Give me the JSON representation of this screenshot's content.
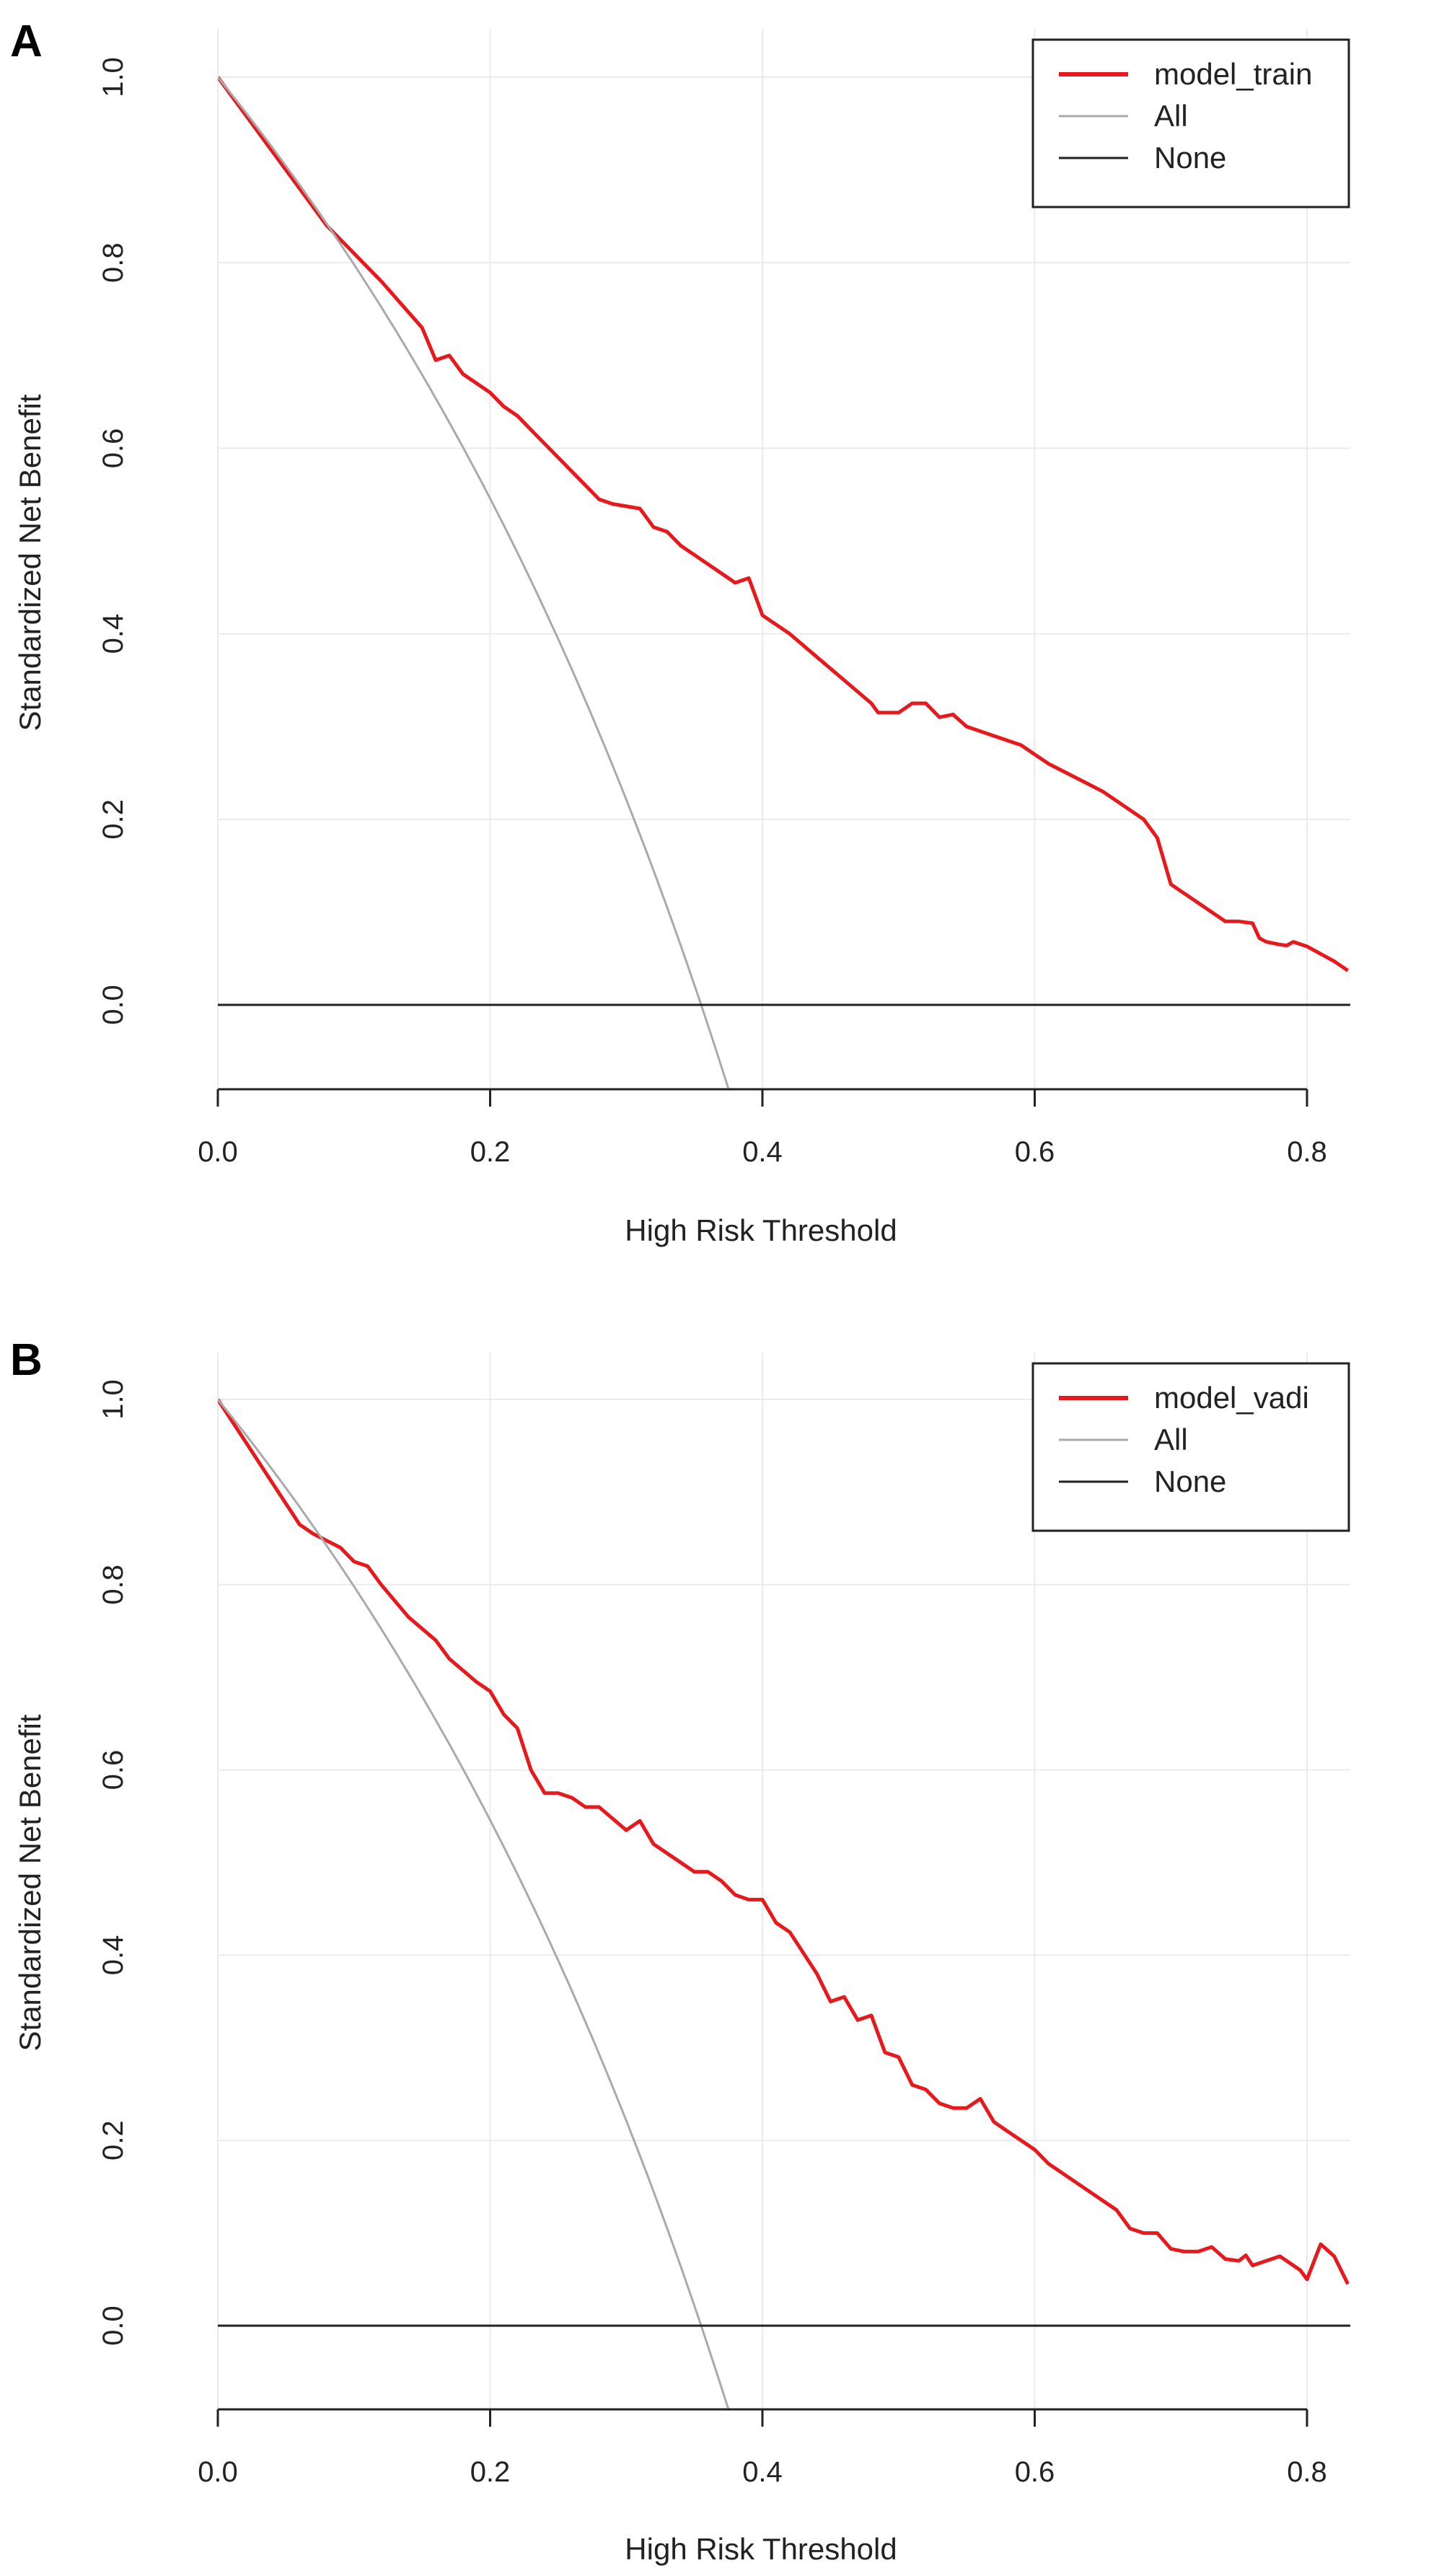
{
  "chart_data": [
    {
      "panel_label": "A",
      "type": "line",
      "title": "",
      "xlabel": "High Risk Threshold",
      "ylabel": "Standardized Net Benefit",
      "xlim": [
        0,
        0.83
      ],
      "ylim": [
        -0.09,
        1.0
      ],
      "grid": true,
      "legend_position": "top-right",
      "x_ticks": [
        {
          "v": 0,
          "label": "0.0"
        },
        {
          "v": 0.2,
          "label": "0.2"
        },
        {
          "v": 0.4,
          "label": "0.4"
        },
        {
          "v": 0.6,
          "label": "0.6"
        },
        {
          "v": 0.8,
          "label": "0.8"
        }
      ],
      "y_ticks": [
        {
          "v": 0,
          "label": "0.0"
        },
        {
          "v": 0.2,
          "label": "0.2"
        },
        {
          "v": 0.4,
          "label": "0.4"
        },
        {
          "v": 0.6,
          "label": "0.6"
        },
        {
          "v": 0.8,
          "label": "0.8"
        },
        {
          "v": 1.0,
          "label": "1.0"
        }
      ],
      "prevalence": 0.355,
      "series": [
        {
          "name": "model_train",
          "color": "#e8191d",
          "role": "model",
          "x": [
            0,
            0.02,
            0.04,
            0.06,
            0.07,
            0.08,
            0.1,
            0.12,
            0.15,
            0.16,
            0.17,
            0.18,
            0.2,
            0.21,
            0.22,
            0.23,
            0.25,
            0.27,
            0.28,
            0.29,
            0.31,
            0.32,
            0.33,
            0.34,
            0.36,
            0.38,
            0.39,
            0.4,
            0.42,
            0.44,
            0.46,
            0.48,
            0.485,
            0.5,
            0.51,
            0.52,
            0.53,
            0.54,
            0.55,
            0.57,
            0.59,
            0.6,
            0.61,
            0.63,
            0.65,
            0.67,
            0.68,
            0.69,
            0.7,
            0.71,
            0.72,
            0.73,
            0.74,
            0.75,
            0.76,
            0.765,
            0.77,
            0.78,
            0.785,
            0.79,
            0.8,
            0.81,
            0.82,
            0.83
          ],
          "y": [
            1.0,
            0.96,
            0.92,
            0.88,
            0.86,
            0.84,
            0.81,
            0.78,
            0.73,
            0.695,
            0.7,
            0.68,
            0.66,
            0.645,
            0.635,
            0.62,
            0.59,
            0.56,
            0.545,
            0.54,
            0.535,
            0.515,
            0.51,
            0.495,
            0.475,
            0.455,
            0.46,
            0.42,
            0.4,
            0.375,
            0.35,
            0.325,
            0.315,
            0.315,
            0.325,
            0.325,
            0.31,
            0.313,
            0.3,
            0.29,
            0.28,
            0.27,
            0.26,
            0.245,
            0.23,
            0.21,
            0.2,
            0.18,
            0.13,
            0.12,
            0.11,
            0.1,
            0.09,
            0.09,
            0.088,
            0.072,
            0.068,
            0.065,
            0.064,
            0.068,
            0.063,
            0.055,
            0.047,
            0.037
          ]
        },
        {
          "name": "All",
          "color": "#aaaaaa",
          "role": "all"
        },
        {
          "name": "None",
          "color": "#222222",
          "role": "none"
        }
      ]
    },
    {
      "panel_label": "B",
      "type": "line",
      "title": "",
      "xlabel": "High Risk Threshold",
      "ylabel": "Standardized Net Benefit",
      "xlim": [
        0,
        0.83
      ],
      "ylim": [
        -0.09,
        1.0
      ],
      "grid": true,
      "legend_position": "top-right",
      "x_ticks": [
        {
          "v": 0,
          "label": "0.0"
        },
        {
          "v": 0.2,
          "label": "0.2"
        },
        {
          "v": 0.4,
          "label": "0.4"
        },
        {
          "v": 0.6,
          "label": "0.6"
        },
        {
          "v": 0.8,
          "label": "0.8"
        }
      ],
      "y_ticks": [
        {
          "v": 0,
          "label": "0.0"
        },
        {
          "v": 0.2,
          "label": "0.2"
        },
        {
          "v": 0.4,
          "label": "0.4"
        },
        {
          "v": 0.6,
          "label": "0.6"
        },
        {
          "v": 0.8,
          "label": "0.8"
        },
        {
          "v": 1.0,
          "label": "1.0"
        }
      ],
      "prevalence": 0.355,
      "series": [
        {
          "name": "model_vadi",
          "color": "#e8191d",
          "role": "model",
          "x": [
            0,
            0.02,
            0.04,
            0.06,
            0.07,
            0.09,
            0.1,
            0.11,
            0.12,
            0.14,
            0.16,
            0.17,
            0.19,
            0.2,
            0.21,
            0.22,
            0.23,
            0.24,
            0.25,
            0.26,
            0.27,
            0.28,
            0.3,
            0.31,
            0.32,
            0.34,
            0.35,
            0.36,
            0.37,
            0.38,
            0.39,
            0.4,
            0.41,
            0.42,
            0.44,
            0.45,
            0.46,
            0.47,
            0.48,
            0.49,
            0.5,
            0.51,
            0.52,
            0.53,
            0.54,
            0.55,
            0.56,
            0.57,
            0.58,
            0.6,
            0.61,
            0.62,
            0.64,
            0.66,
            0.67,
            0.68,
            0.69,
            0.7,
            0.71,
            0.72,
            0.73,
            0.74,
            0.75,
            0.755,
            0.76,
            0.78,
            0.79,
            0.795,
            0.8,
            0.81,
            0.82,
            0.83
          ],
          "y": [
            1.0,
            0.955,
            0.91,
            0.865,
            0.855,
            0.84,
            0.825,
            0.82,
            0.8,
            0.765,
            0.74,
            0.72,
            0.695,
            0.685,
            0.66,
            0.645,
            0.6,
            0.575,
            0.575,
            0.57,
            0.56,
            0.56,
            0.535,
            0.545,
            0.52,
            0.5,
            0.49,
            0.49,
            0.48,
            0.465,
            0.46,
            0.46,
            0.435,
            0.425,
            0.38,
            0.35,
            0.355,
            0.33,
            0.335,
            0.295,
            0.29,
            0.26,
            0.255,
            0.24,
            0.235,
            0.235,
            0.245,
            0.22,
            0.21,
            0.19,
            0.175,
            0.165,
            0.145,
            0.125,
            0.105,
            0.1,
            0.1,
            0.083,
            0.08,
            0.08,
            0.085,
            0.072,
            0.07,
            0.076,
            0.065,
            0.075,
            0.065,
            0.06,
            0.05,
            0.088,
            0.075,
            0.045
          ]
        },
        {
          "name": "All",
          "color": "#aaaaaa",
          "role": "all"
        },
        {
          "name": "None",
          "color": "#222222",
          "role": "none"
        }
      ]
    }
  ]
}
